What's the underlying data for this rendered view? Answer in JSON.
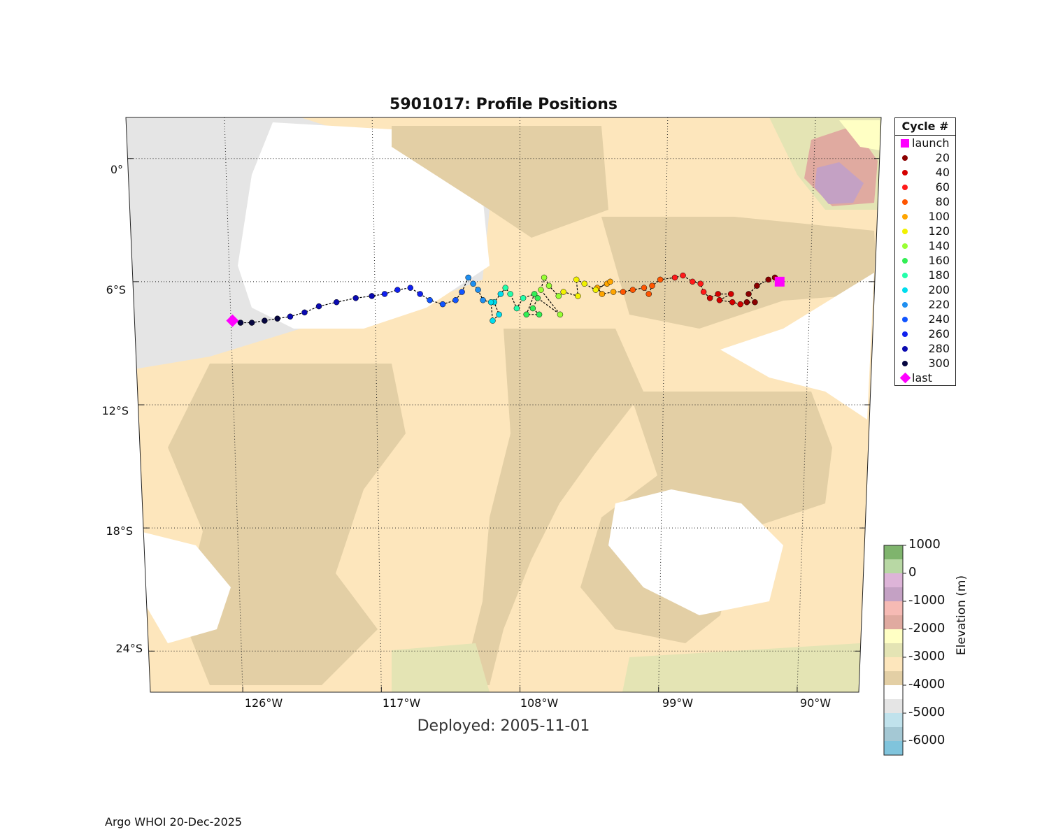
{
  "title": "5901017: Profile Positions",
  "deployed": "Deployed: 2005-11-01",
  "footer": "Argo WHOI 20-Dec-2025",
  "map": {
    "lat_ticks": [
      "0°",
      "6°S",
      "12°S",
      "18°S",
      "24°S"
    ],
    "lon_ticks": [
      "126°W",
      "117°W",
      "108°W",
      "99°W",
      "90°W"
    ]
  },
  "legend": {
    "title": "Cycle #",
    "launch": {
      "label": "launch",
      "color": "#ff00ff"
    },
    "last": {
      "label": "last",
      "color": "#ff00ff"
    },
    "items": [
      {
        "label": "20",
        "color": "#8b0000"
      },
      {
        "label": "40",
        "color": "#d40000"
      },
      {
        "label": "60",
        "color": "#ff1a1a"
      },
      {
        "label": "80",
        "color": "#ff5500"
      },
      {
        "label": "100",
        "color": "#ffa500"
      },
      {
        "label": "120",
        "color": "#f2f200"
      },
      {
        "label": "140",
        "color": "#99ff33"
      },
      {
        "label": "160",
        "color": "#33ee55"
      },
      {
        "label": "180",
        "color": "#22ffaa"
      },
      {
        "label": "200",
        "color": "#00ddee"
      },
      {
        "label": "220",
        "color": "#1f8ff0"
      },
      {
        "label": "240",
        "color": "#1155ff"
      },
      {
        "label": "260",
        "color": "#1020ee"
      },
      {
        "label": "280",
        "color": "#0a0ab0"
      },
      {
        "label": "300",
        "color": "#060640"
      }
    ]
  },
  "colorbar": {
    "title": "Elevation (m)",
    "labels": [
      "1000",
      "0",
      "-1000",
      "-2000",
      "-3000",
      "-4000",
      "-5000",
      "-6000"
    ],
    "colors": [
      "#7fb46d",
      "#b8d8a4",
      "#ddb4d8",
      "#c4a1c4",
      "#f6bab4",
      "#e0aaa0",
      "#ffffc4",
      "#e4e4b4",
      "#fde6bc",
      "#e3cfa5",
      "#ffffff",
      "#e5e5e5",
      "#c0e2ec",
      "#a4c8d4",
      "#80c4dc"
    ]
  },
  "chart_data": {
    "type": "scatter",
    "title": "5901017: Profile Positions",
    "xlabel": "",
    "ylabel": "",
    "xlim": [
      -132,
      -86
    ],
    "ylim": [
      -26,
      2
    ],
    "launch": {
      "lon": -91.9,
      "lat": -6.0
    },
    "last": {
      "lon": -125.9,
      "lat": -7.9
    },
    "series": [
      {
        "name": "20",
        "points": [
          [
            -91.9,
            -6.0
          ],
          [
            -92.2,
            -5.8
          ],
          [
            -92.6,
            -5.9
          ],
          [
            -93.3,
            -6.2
          ],
          [
            -93.8,
            -6.6
          ],
          [
            -93.4,
            -7.0
          ],
          [
            -93.9,
            -7.0
          ]
        ]
      },
      {
        "name": "40",
        "points": [
          [
            -94.3,
            -7.1
          ],
          [
            -94.8,
            -7.0
          ],
          [
            -95.6,
            -6.9
          ],
          [
            -94.9,
            -6.6
          ],
          [
            -95.7,
            -6.6
          ],
          [
            -96.2,
            -6.8
          ]
        ]
      },
      {
        "name": "60",
        "points": [
          [
            -96.6,
            -6.5
          ],
          [
            -96.8,
            -6.1
          ],
          [
            -97.3,
            -6.0
          ],
          [
            -97.9,
            -5.7
          ],
          [
            -98.4,
            -5.8
          ]
        ]
      },
      {
        "name": "80",
        "points": [
          [
            -99.3,
            -5.9
          ],
          [
            -99.8,
            -6.2
          ],
          [
            -100.0,
            -6.6
          ],
          [
            -100.3,
            -6.3
          ],
          [
            -101.0,
            -6.4
          ],
          [
            -101.6,
            -6.5
          ]
        ]
      },
      {
        "name": "100",
        "points": [
          [
            -102.2,
            -6.5
          ],
          [
            -102.9,
            -6.6
          ],
          [
            -103.2,
            -6.3
          ],
          [
            -102.6,
            -6.1
          ],
          [
            -102.4,
            -6.0
          ]
        ]
      },
      {
        "name": "120",
        "points": [
          [
            -103.3,
            -6.4
          ],
          [
            -104.0,
            -6.1
          ],
          [
            -104.5,
            -5.9
          ],
          [
            -104.4,
            -6.7
          ],
          [
            -105.3,
            -6.5
          ]
        ]
      },
      {
        "name": "140",
        "points": [
          [
            -105.6,
            -6.7
          ],
          [
            -106.2,
            -6.2
          ],
          [
            -106.5,
            -5.8
          ],
          [
            -106.7,
            -6.4
          ],
          [
            -105.5,
            -7.6
          ]
        ]
      },
      {
        "name": "160",
        "points": [
          [
            -106.9,
            -6.8
          ],
          [
            -107.2,
            -7.3
          ],
          [
            -106.8,
            -7.6
          ],
          [
            -107.6,
            -7.6
          ],
          [
            -107.1,
            -6.6
          ]
        ]
      },
      {
        "name": "180",
        "points": [
          [
            -107.8,
            -6.8
          ],
          [
            -108.2,
            -7.3
          ],
          [
            -108.6,
            -6.6
          ],
          [
            -108.9,
            -6.3
          ]
        ]
      },
      {
        "name": "200",
        "points": [
          [
            -109.2,
            -6.6
          ],
          [
            -109.6,
            -7.0
          ],
          [
            -109.3,
            -7.6
          ],
          [
            -109.7,
            -7.9
          ],
          [
            -109.8,
            -7.0
          ]
        ]
      },
      {
        "name": "220",
        "points": [
          [
            -110.3,
            -6.9
          ],
          [
            -110.6,
            -6.4
          ],
          [
            -110.9,
            -6.1
          ],
          [
            -111.2,
            -5.8
          ]
        ]
      },
      {
        "name": "240",
        "points": [
          [
            -111.6,
            -6.5
          ],
          [
            -112.0,
            -6.9
          ],
          [
            -112.8,
            -7.1
          ],
          [
            -113.6,
            -6.9
          ]
        ]
      },
      {
        "name": "260",
        "points": [
          [
            -114.2,
            -6.6
          ],
          [
            -114.8,
            -6.3
          ],
          [
            -115.6,
            -6.4
          ],
          [
            -116.4,
            -6.6
          ]
        ]
      },
      {
        "name": "280",
        "points": [
          [
            -117.2,
            -6.7
          ],
          [
            -118.2,
            -6.8
          ],
          [
            -119.4,
            -7.0
          ],
          [
            -120.5,
            -7.2
          ],
          [
            -121.4,
            -7.5
          ],
          [
            -122.3,
            -7.7
          ]
        ]
      },
      {
        "name": "300",
        "points": [
          [
            -123.1,
            -7.8
          ],
          [
            -123.9,
            -7.9
          ],
          [
            -124.7,
            -8.0
          ],
          [
            -125.4,
            -8.0
          ],
          [
            -125.9,
            -7.9
          ]
        ]
      }
    ]
  }
}
